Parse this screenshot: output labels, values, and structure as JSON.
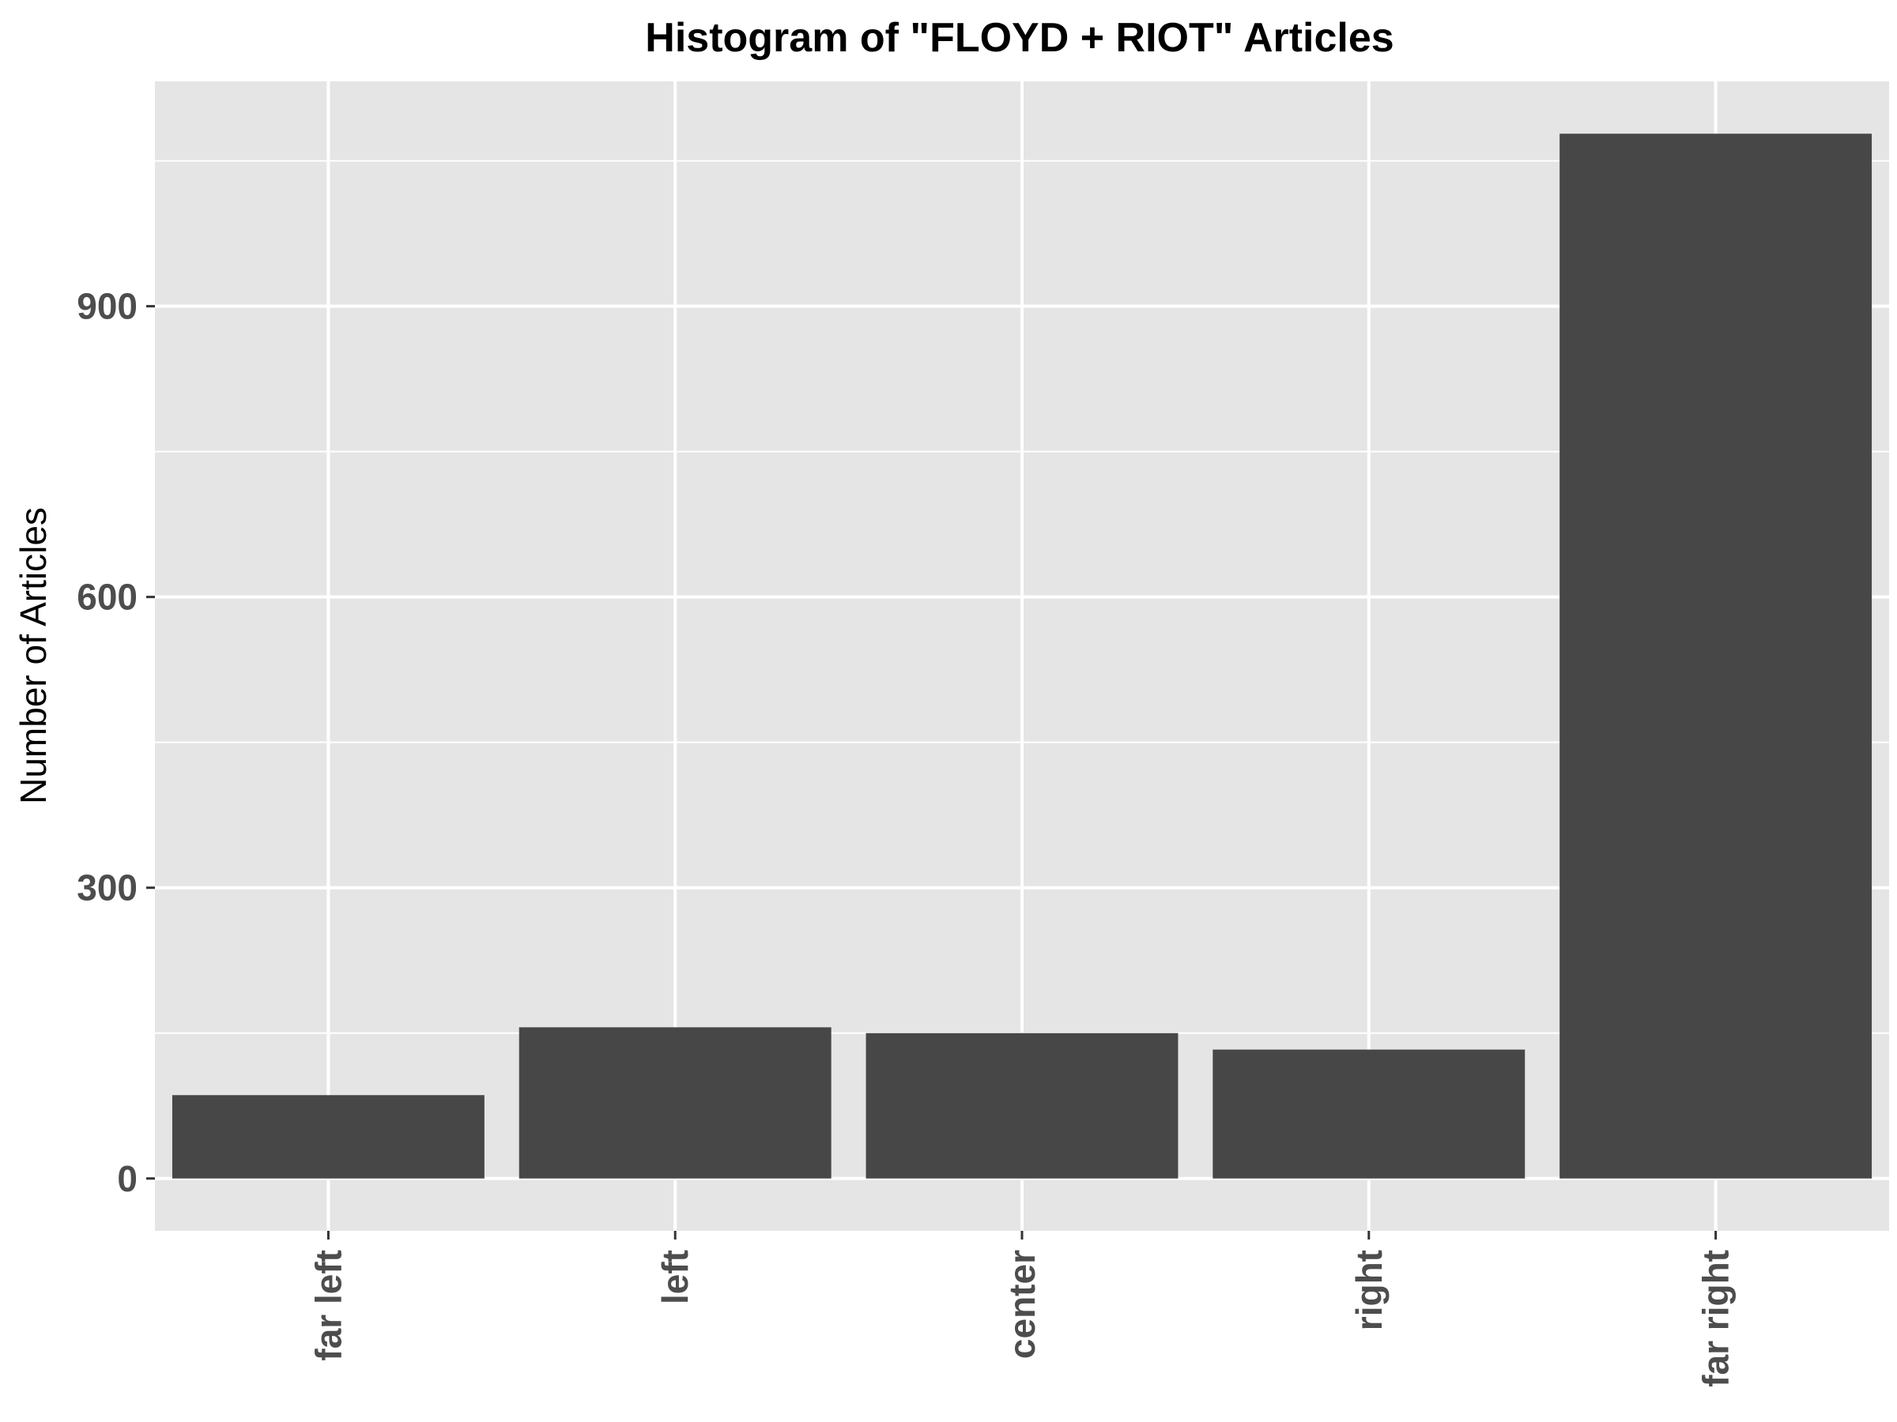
{
  "chart_data": {
    "type": "bar",
    "title": "Histogram of \"FLOYD + RIOT\" Articles",
    "xlabel": "",
    "ylabel": "Number of Articles",
    "categories": [
      "far left",
      "left",
      "center",
      "right",
      "far right"
    ],
    "values": [
      86,
      156,
      150,
      133,
      1078
    ],
    "yticks": [
      0,
      300,
      600,
      900
    ],
    "ylim": [
      -54,
      1132
    ],
    "grid": true,
    "colors": {
      "panel": "#e5e5e5",
      "grid": "#ffffff",
      "bar": "#474747",
      "tick_text": "#4d4d4d",
      "tick_mark": "#333333"
    }
  }
}
